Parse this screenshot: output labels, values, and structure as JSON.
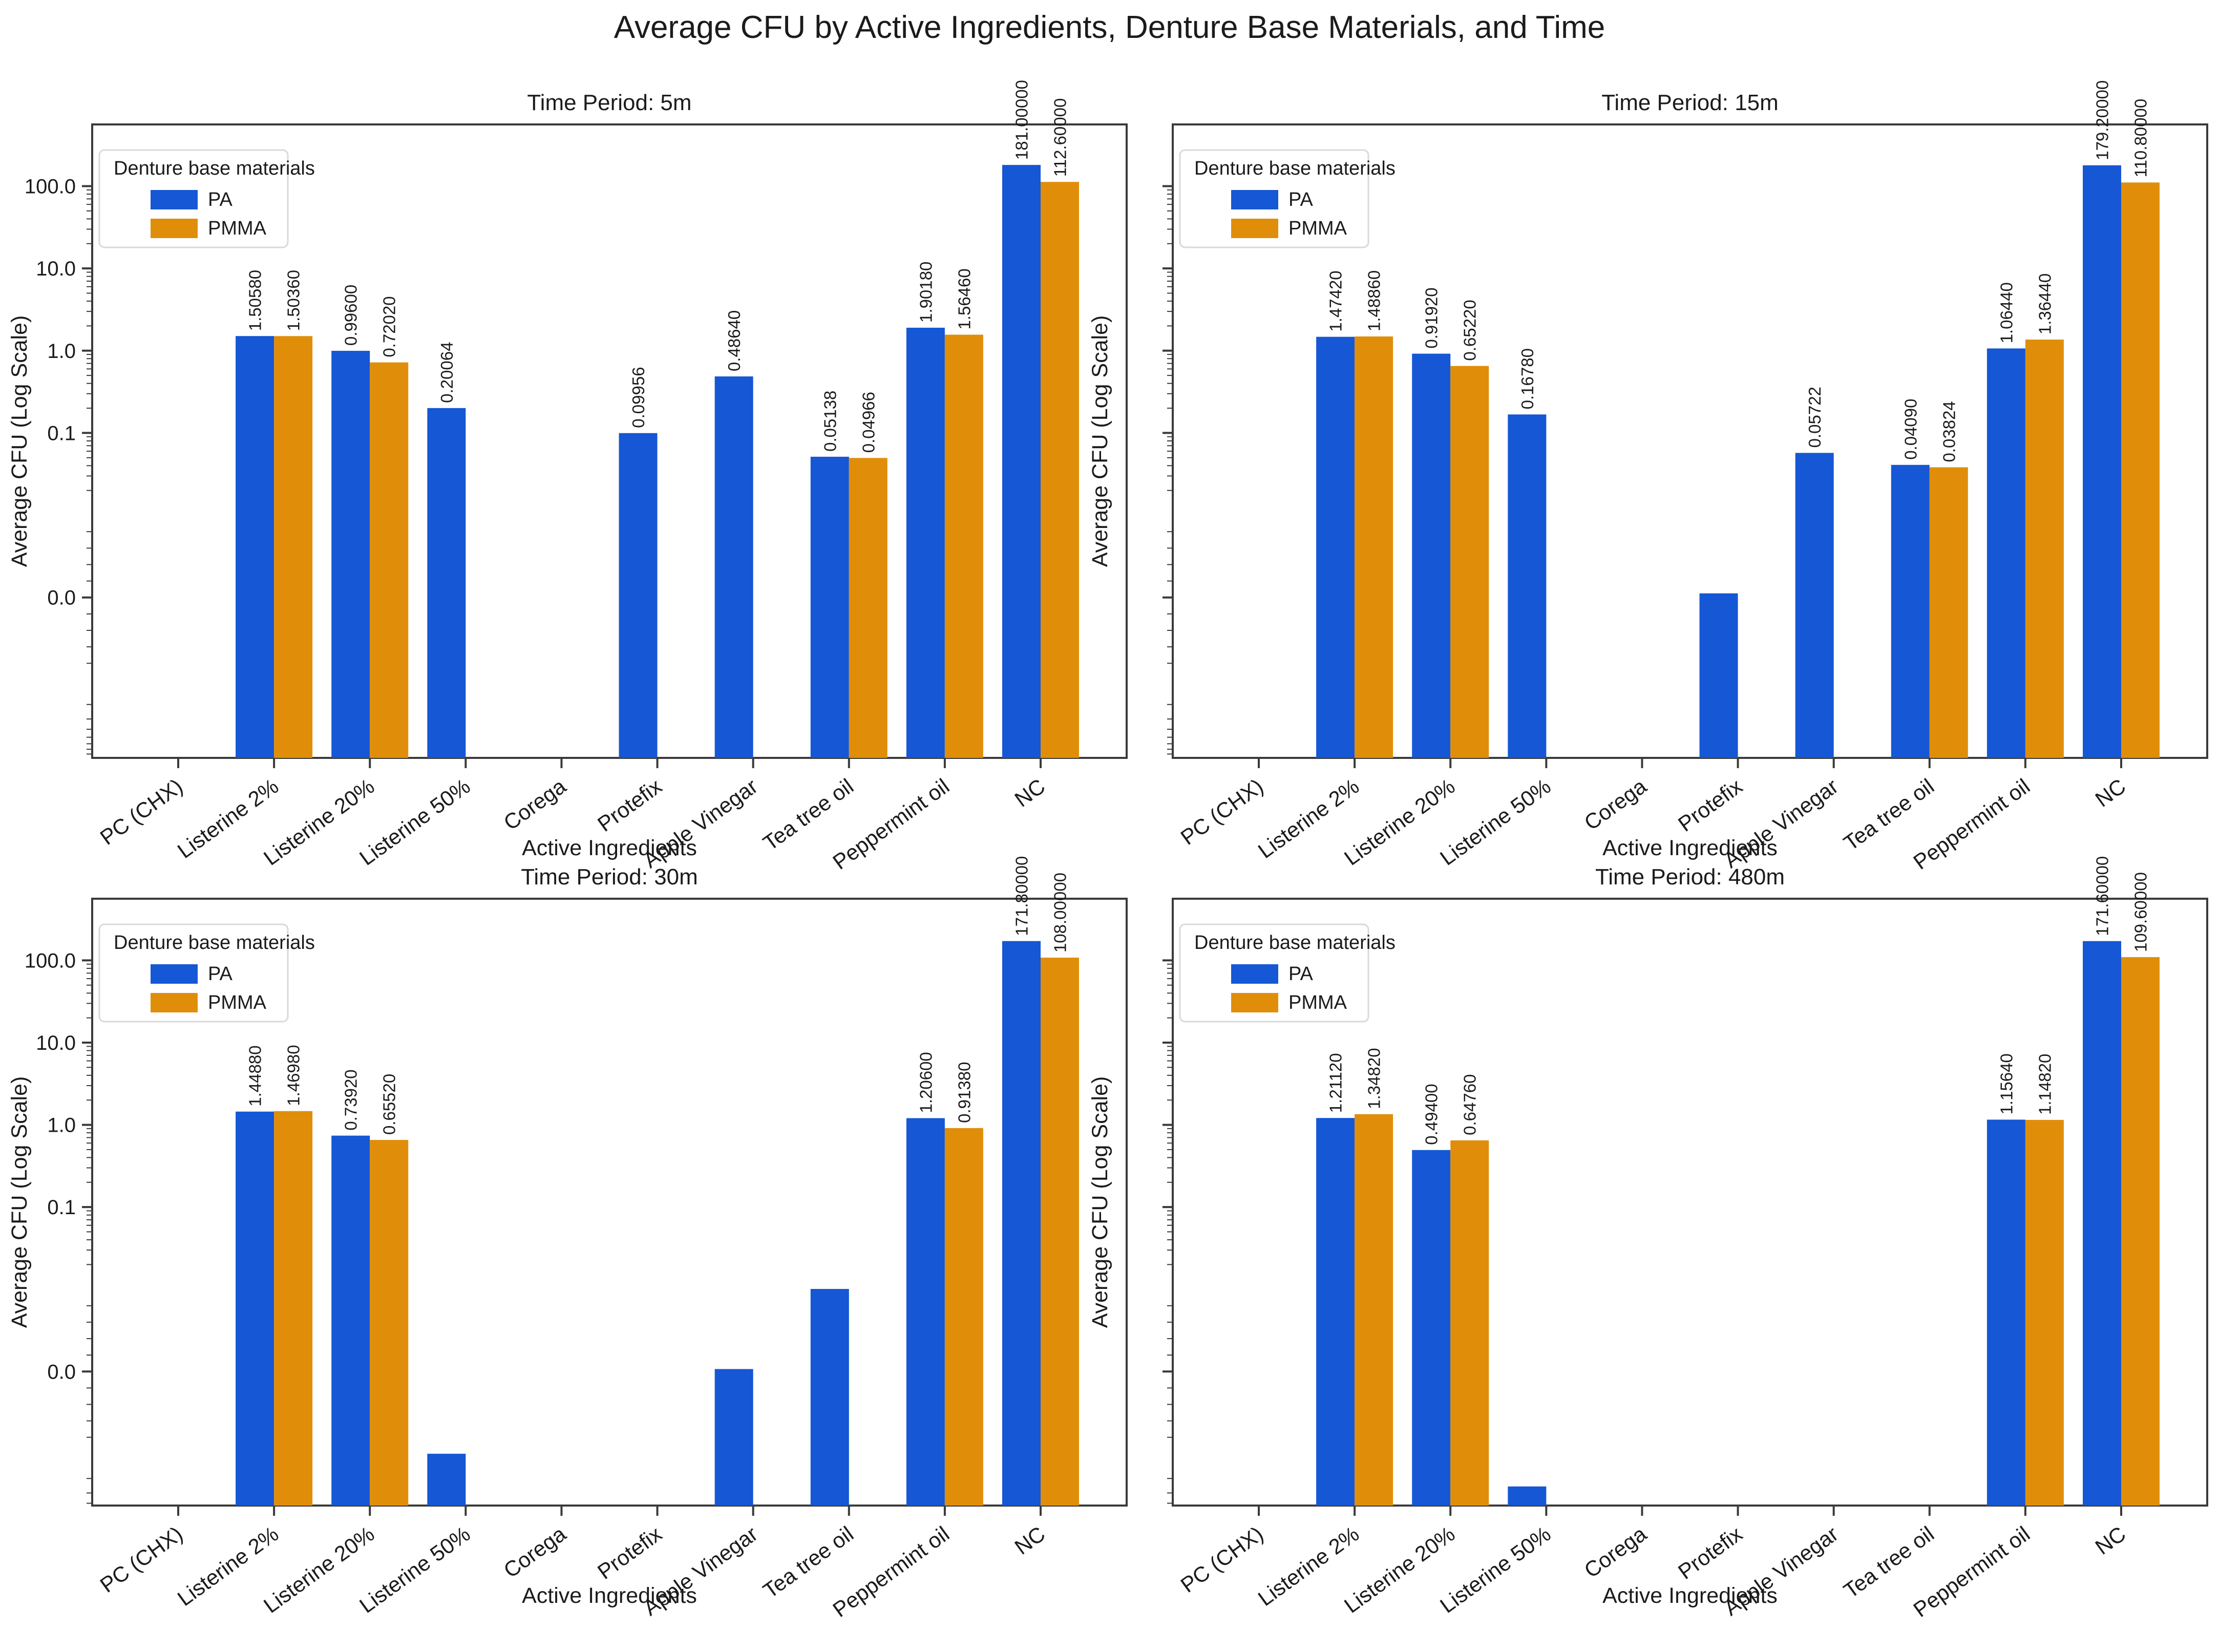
{
  "page_title": "Average CFU by Active Ingredients, Denture Base Materials, and Time",
  "colors": {
    "pa_blue": "#1557d5",
    "pmma_orange": "#e08e0a",
    "spine": "#3a3a3a",
    "text": "#1b1b1b",
    "legend_border": "#d9d9d9"
  },
  "legend": {
    "title": "Denture base materials",
    "entries": [
      {
        "label": "PA",
        "color_key": "pa_blue"
      },
      {
        "label": "PMMA",
        "color_key": "pmma_orange"
      }
    ]
  },
  "axes": {
    "xlabel": "Active Ingredients",
    "ylabel": "Average CFU (Log Scale)",
    "ytick_labels": [
      "100.0",
      "10.0",
      "1.0",
      "0.1",
      "0.0"
    ],
    "ytick_values": [
      100,
      10,
      1,
      0.1,
      0
    ]
  },
  "categories": [
    "PC (CHX)",
    "Listerine 2%",
    "Listerine 20%",
    "Listerine 50%",
    "Corega",
    "Protefix",
    "Apple Vinegar",
    "Tea tree oil",
    "Peppermint oil",
    "NC"
  ],
  "chart_data": [
    {
      "type": "bar",
      "title": "Time Period: 5m",
      "xlabel": "Active Ingredients",
      "ylabel": "Average CFU (Log Scale)",
      "yscale": "symlog",
      "linthresh": 0.01,
      "ylim_decades": {
        "top": 5.75,
        "bottom": -1.95
      },
      "series": [
        {
          "name": "PA",
          "values": [
            null,
            1.5058,
            0.996,
            0.20064,
            null,
            0.09956,
            0.4864,
            0.05138,
            1.9018,
            181.0
          ],
          "bar_labels": [
            null,
            "1.50580",
            "0.99600",
            "0.20064",
            null,
            "0.09956",
            "0.48640",
            "0.05138",
            "1.90180",
            "181.00000"
          ]
        },
        {
          "name": "PMMA",
          "values": [
            null,
            1.5036,
            0.7202,
            null,
            null,
            null,
            null,
            0.04966,
            1.5646,
            112.6
          ],
          "bar_labels": [
            null,
            "1.50360",
            "0.72020",
            null,
            null,
            null,
            null,
            "0.04966",
            "1.56460",
            "112.60000"
          ]
        }
      ]
    },
    {
      "type": "bar",
      "title": "Time Period: 15m",
      "xlabel": "Active Ingredients",
      "ylabel": "Average CFU (Log Scale)",
      "yscale": "symlog",
      "linthresh": 0.01,
      "ylim_decades": {
        "top": 5.75,
        "bottom": -1.95
      },
      "series": [
        {
          "name": "PA",
          "values": [
            null,
            1.4742,
            0.9192,
            0.1678,
            null,
            0.0005,
            0.05722,
            0.0409,
            1.0644,
            179.2
          ],
          "bar_labels": [
            null,
            "1.47420",
            "0.91920",
            "0.16780",
            null,
            null,
            "0.05722",
            "0.04090",
            "1.06440",
            "179.20000"
          ]
        },
        {
          "name": "PMMA",
          "values": [
            null,
            1.4886,
            0.6522,
            null,
            null,
            null,
            null,
            0.03824,
            1.3644,
            110.8
          ],
          "bar_labels": [
            null,
            "1.48860",
            "0.65220",
            null,
            null,
            null,
            null,
            "0.03824",
            "1.36440",
            "110.80000"
          ]
        }
      ]
    },
    {
      "type": "bar",
      "title": "Time Period: 30m",
      "xlabel": "Active Ingredients",
      "ylabel": "Average CFU (Log Scale)",
      "yscale": "symlog",
      "linthresh": 0.01,
      "ylim_decades": {
        "top": 5.75,
        "bottom": -1.63
      },
      "series": [
        {
          "name": "PA",
          "values": [
            null,
            1.4488,
            0.7392,
            -0.01,
            null,
            null,
            0.0003,
            0.0101,
            1.206,
            171.8
          ],
          "bar_labels": [
            null,
            "1.44880",
            "0.73920",
            null,
            null,
            null,
            null,
            null,
            "1.20600",
            "171.80000"
          ]
        },
        {
          "name": "PMMA",
          "values": [
            null,
            1.4698,
            0.6552,
            null,
            null,
            null,
            null,
            null,
            0.9138,
            108.0
          ],
          "bar_labels": [
            null,
            "1.46980",
            "0.65520",
            null,
            null,
            null,
            null,
            null,
            "0.91380",
            "108.00000"
          ]
        }
      ]
    },
    {
      "type": "bar",
      "title": "Time Period: 480m",
      "xlabel": "Active Ingredients",
      "ylabel": "Average CFU (Log Scale)",
      "yscale": "symlog",
      "linthresh": 0.01,
      "ylim_decades": {
        "top": 5.75,
        "bottom": -1.63
      },
      "series": [
        {
          "name": "PA",
          "values": [
            null,
            1.2112,
            0.494,
            -0.025,
            null,
            null,
            null,
            null,
            1.1564,
            171.6
          ],
          "bar_labels": [
            null,
            "1.21120",
            "0.49400",
            null,
            null,
            null,
            null,
            null,
            "1.15640",
            "171.60000"
          ]
        },
        {
          "name": "PMMA",
          "values": [
            null,
            1.3482,
            0.6476,
            null,
            null,
            null,
            null,
            null,
            1.1482,
            109.6
          ],
          "bar_labels": [
            null,
            "1.34820",
            "0.64760",
            null,
            null,
            null,
            null,
            null,
            "1.14820",
            "109.60000"
          ]
        }
      ]
    }
  ]
}
